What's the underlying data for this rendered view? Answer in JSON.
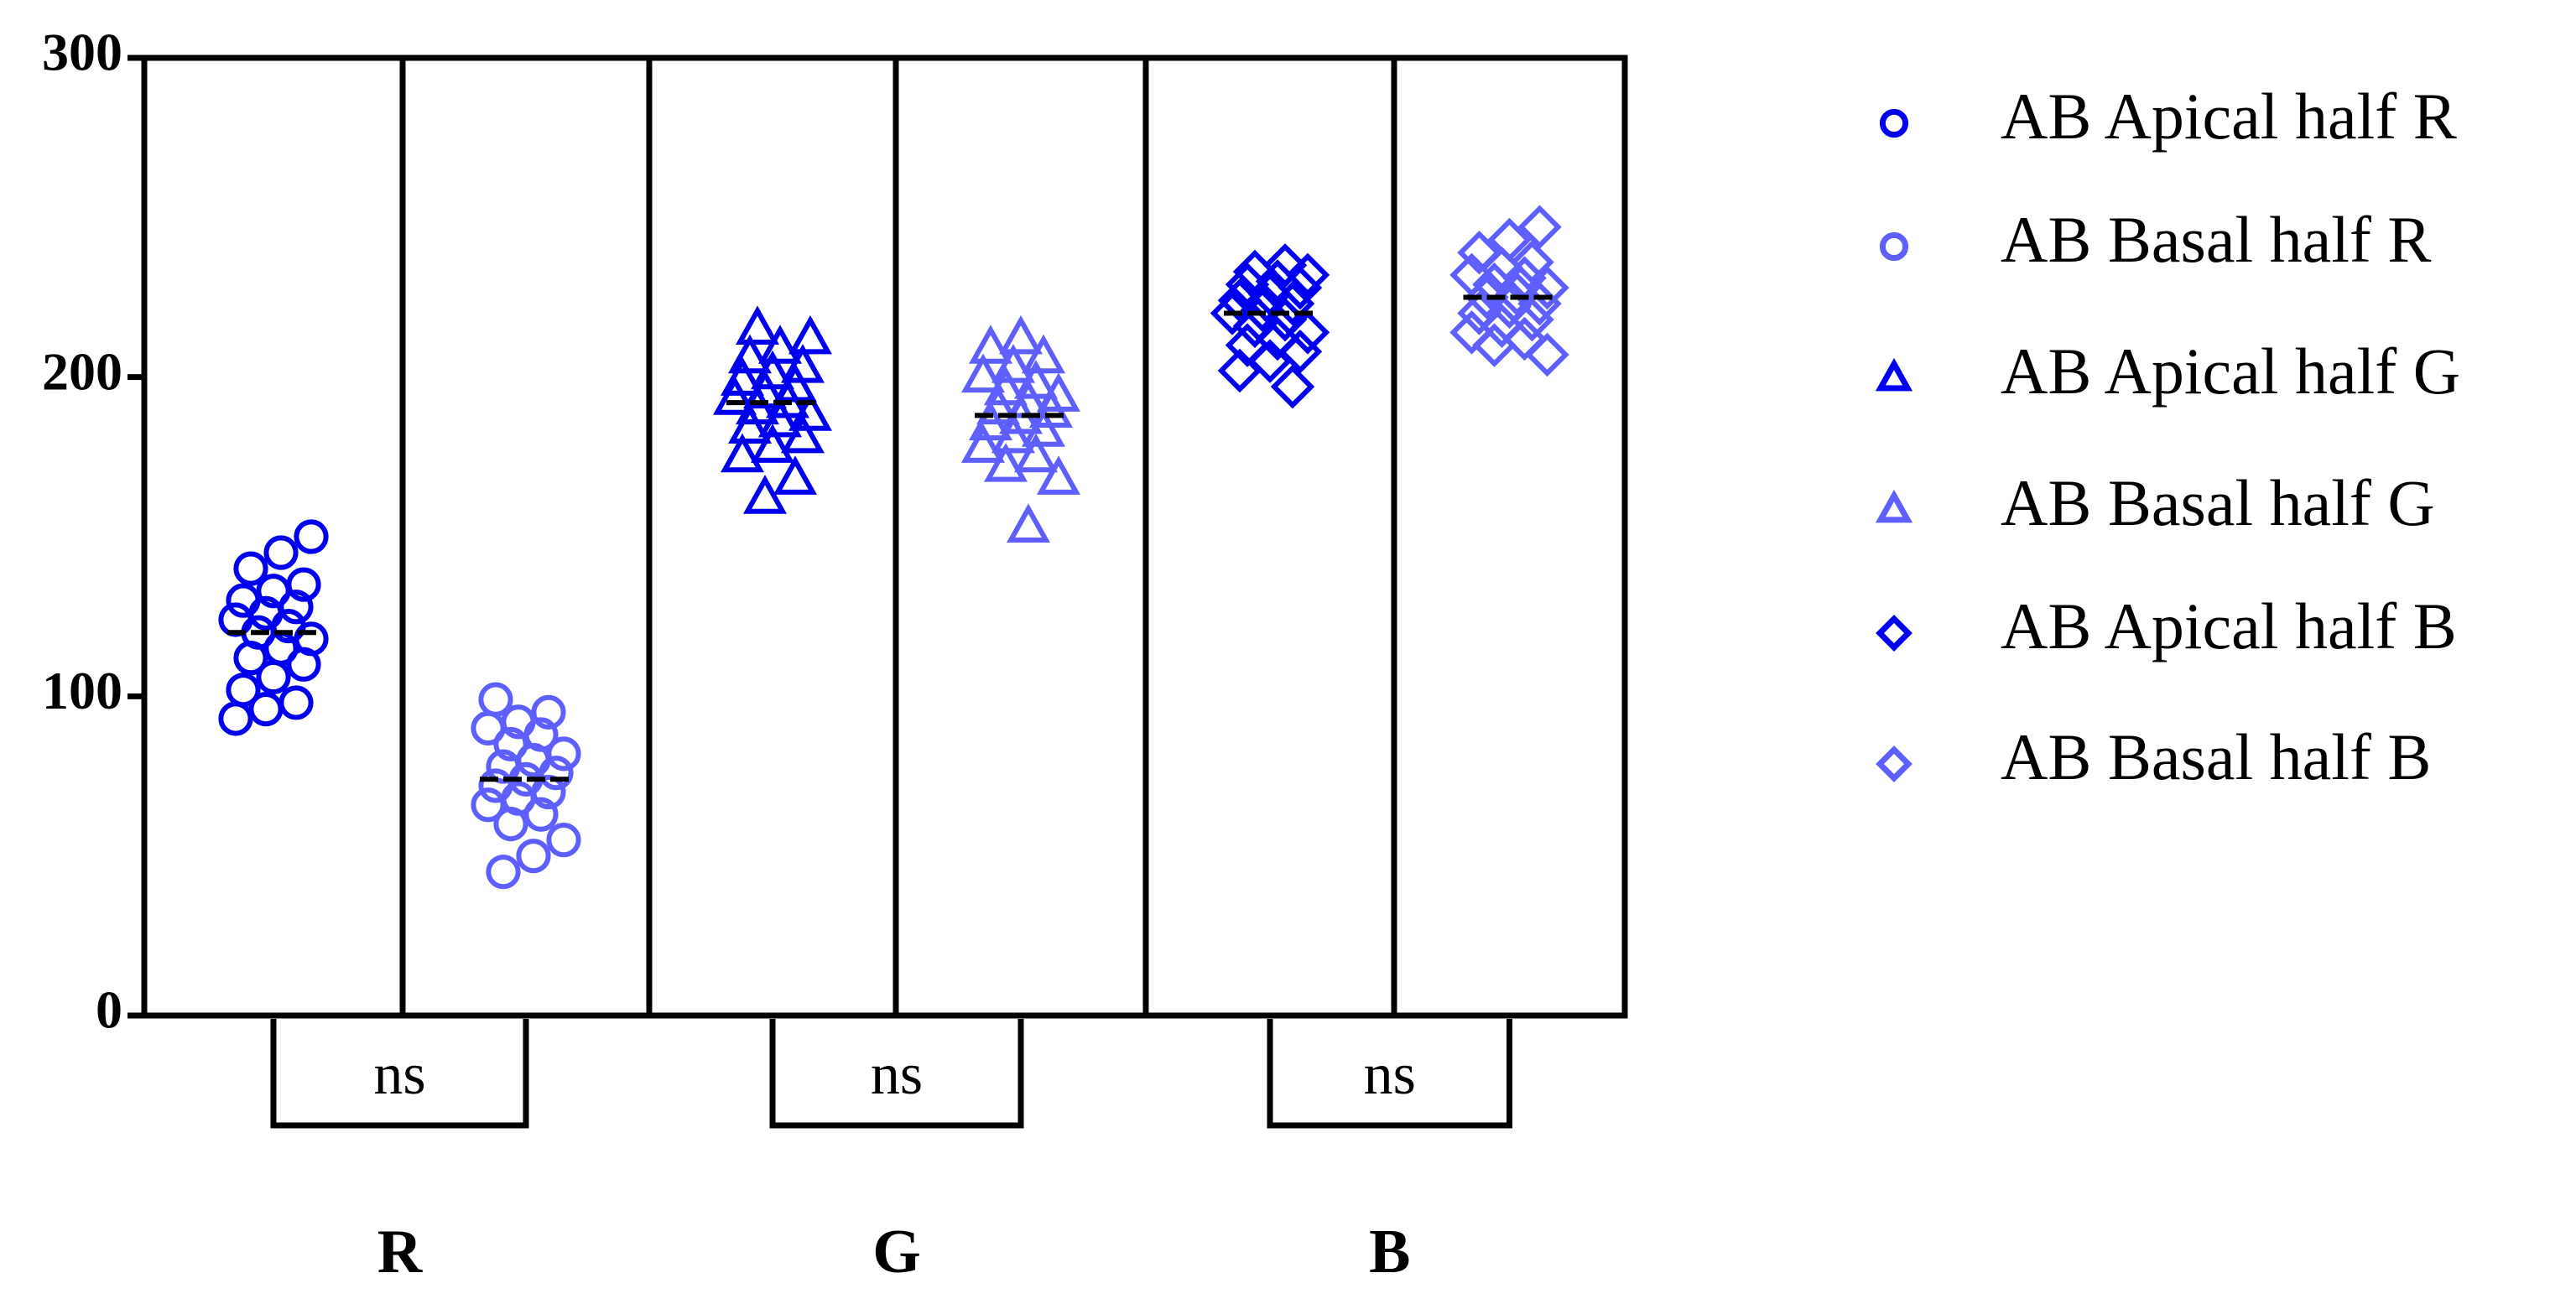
{
  "chart_data": {
    "type": "scatter",
    "groups": [
      "R",
      "G",
      "B"
    ],
    "annotations": [
      "ns",
      "ns",
      "ns"
    ],
    "ylim": [
      0,
      300
    ],
    "yticks": [
      0,
      100,
      200,
      300
    ],
    "series": [
      {
        "name": "AB Apical half R",
        "color": "#0000ee",
        "marker": "circle",
        "mean": 120,
        "values": [
          93,
          96,
          98,
          102,
          106,
          110,
          112,
          115,
          118,
          120,
          122,
          124,
          126,
          128,
          130,
          133,
          135,
          140,
          145,
          150
        ]
      },
      {
        "name": "AB Basal half R",
        "color": "#5f5fff",
        "marker": "circle",
        "mean": 74,
        "values": [
          45,
          50,
          55,
          60,
          63,
          66,
          68,
          70,
          72,
          74,
          76,
          78,
          80,
          82,
          85,
          88,
          90,
          92,
          95,
          99
        ]
      },
      {
        "name": "AB Apical half G",
        "color": "#0000ee",
        "marker": "triangle",
        "mean": 192,
        "values": [
          162,
          168,
          175,
          178,
          181,
          184,
          186,
          188,
          190,
          192,
          193,
          195,
          197,
          199,
          201,
          203,
          206,
          209,
          212,
          215
        ]
      },
      {
        "name": "AB Basal half G",
        "color": "#5f5fff",
        "marker": "triangle",
        "mean": 188,
        "values": [
          153,
          168,
          172,
          175,
          178,
          181,
          183,
          185,
          187,
          189,
          190,
          192,
          194,
          196,
          198,
          200,
          203,
          206,
          209,
          212
        ]
      },
      {
        "name": "AB Apical half B",
        "color": "#0000ee",
        "marker": "diamond",
        "mean": 220,
        "values": [
          197,
          202,
          205,
          208,
          210,
          212,
          214,
          216,
          218,
          220,
          221,
          223,
          224,
          226,
          228,
          229,
          230,
          232,
          233,
          235
        ]
      },
      {
        "name": "AB Basal half B",
        "color": "#5f5fff",
        "marker": "diamond",
        "mean": 225,
        "values": [
          207,
          210,
          212,
          214,
          216,
          218,
          220,
          222,
          223,
          225,
          226,
          228,
          229,
          231,
          232,
          234,
          236,
          239,
          243,
          247
        ]
      }
    ]
  }
}
